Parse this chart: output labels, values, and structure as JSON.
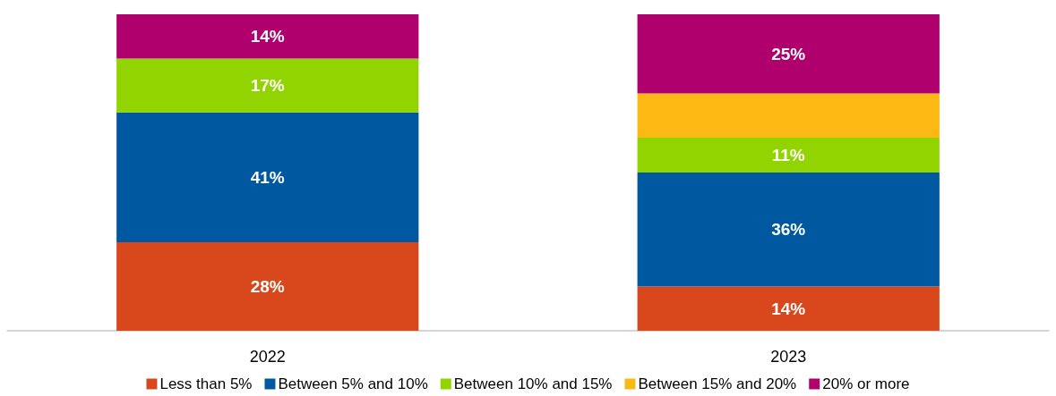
{
  "chart_data": {
    "type": "bar",
    "stacked": true,
    "categories": [
      "2022",
      "2023"
    ],
    "ylim": [
      0,
      100
    ],
    "tick_labels": "x",
    "legend": "bottom",
    "series": [
      {
        "name": "Less than 5%",
        "color": "#d9481c",
        "values": [
          28,
          14
        ],
        "value_labels": [
          "28%",
          "14%"
        ]
      },
      {
        "name": "Between 5% and 10%",
        "color": "#0058a0",
        "values": [
          41,
          36
        ],
        "value_labels": [
          "41%",
          "36%"
        ]
      },
      {
        "name": "Between 10% and 15%",
        "color": "#92d400",
        "values": [
          17,
          11
        ],
        "value_labels": [
          "17%",
          "11%"
        ]
      },
      {
        "name": "Between 15% and 20%",
        "color": "#fdb913",
        "values": [
          null,
          14
        ],
        "value_labels": [
          null,
          null
        ]
      },
      {
        "name": "20% or more",
        "color": "#b0006e",
        "values": [
          14,
          25
        ],
        "value_labels": [
          "14%",
          "25%"
        ]
      }
    ]
  }
}
